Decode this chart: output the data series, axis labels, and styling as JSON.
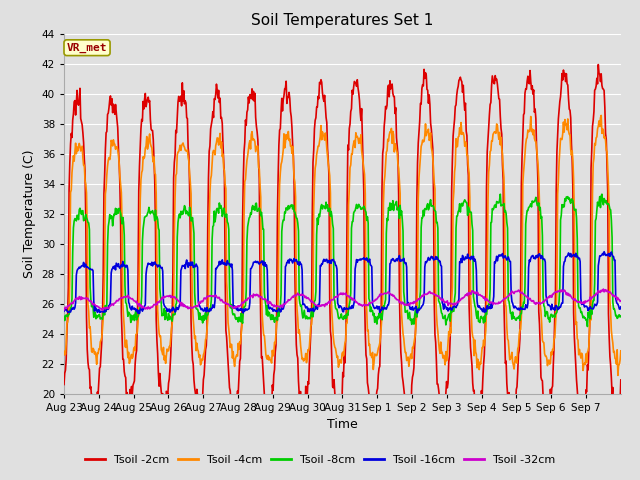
{
  "title": "Soil Temperatures Set 1",
  "xlabel": "Time",
  "ylabel": "Soil Temperature (C)",
  "ylim": [
    20,
    44
  ],
  "yticks": [
    20,
    22,
    24,
    26,
    28,
    30,
    32,
    34,
    36,
    38,
    40,
    42,
    44
  ],
  "background_color": "#e0e0e0",
  "grid_color": "#ffffff",
  "annotation_text": "VR_met",
  "annotation_bg": "#ffffcc",
  "annotation_border": "#999900",
  "annotation_text_color": "#990000",
  "series": [
    {
      "label": "Tsoil -2cm",
      "color": "#dd0000",
      "lw": 1.2
    },
    {
      "label": "Tsoil -4cm",
      "color": "#ff8800",
      "lw": 1.2
    },
    {
      "label": "Tsoil -8cm",
      "color": "#00cc00",
      "lw": 1.2
    },
    {
      "label": "Tsoil -16cm",
      "color": "#0000dd",
      "lw": 1.2
    },
    {
      "label": "Tsoil -32cm",
      "color": "#cc00cc",
      "lw": 1.2
    }
  ],
  "xtick_labels": [
    "Aug 23",
    "Aug 24",
    "Aug 25",
    "Aug 26",
    "Aug 27",
    "Aug 28",
    "Aug 29",
    "Aug 30",
    "Aug 31",
    "Sep 1",
    "Sep 2",
    "Sep 3",
    "Sep 4",
    "Sep 5",
    "Sep 6",
    "Sep 7"
  ],
  "n_days": 16,
  "pts_per_day": 48
}
